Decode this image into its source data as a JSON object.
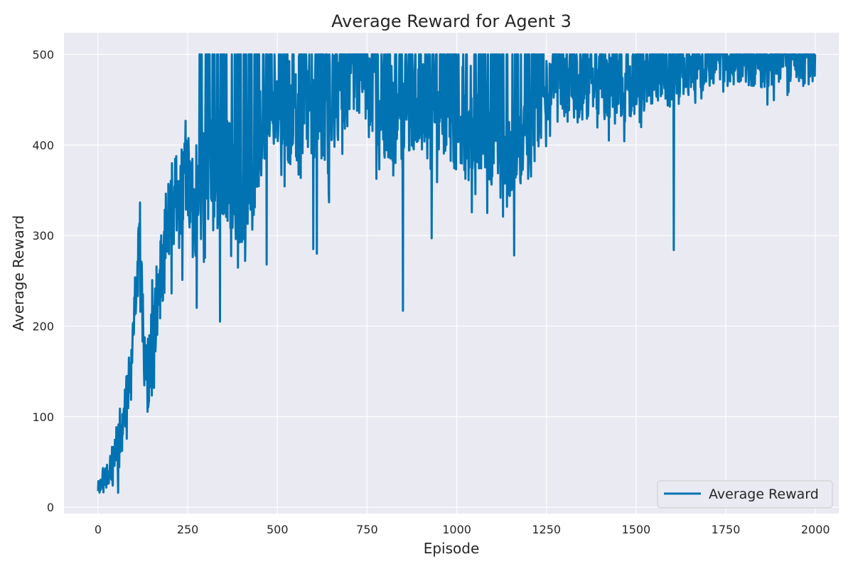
{
  "chart_data": {
    "type": "line",
    "title": "Average Reward for Agent 3",
    "xlabel": "Episode",
    "ylabel": "Average Reward",
    "xlim": [
      -95,
      2065
    ],
    "ylim": [
      -7,
      524
    ],
    "xticks": [
      0,
      250,
      500,
      750,
      1000,
      1250,
      1500,
      1750,
      2000
    ],
    "yticks": [
      0,
      100,
      200,
      300,
      400,
      500
    ],
    "grid": true,
    "legend_position": "lower-right",
    "series": [
      {
        "name": "Average Reward",
        "color": "#0173b2",
        "anchors": [
          [
            0,
            22
          ],
          [
            10,
            28
          ],
          [
            20,
            35
          ],
          [
            30,
            40
          ],
          [
            40,
            45
          ],
          [
            50,
            55
          ],
          [
            60,
            70
          ],
          [
            70,
            80
          ],
          [
            80,
            110
          ],
          [
            90,
            150
          ],
          [
            100,
            200
          ],
          [
            110,
            290
          ],
          [
            120,
            250
          ],
          [
            130,
            160
          ],
          [
            140,
            150
          ],
          [
            150,
            170
          ],
          [
            160,
            210
          ],
          [
            170,
            250
          ],
          [
            180,
            280
          ],
          [
            190,
            300
          ],
          [
            200,
            320
          ],
          [
            225,
            340
          ],
          [
            250,
            370
          ],
          [
            275,
            330
          ],
          [
            300,
            390
          ],
          [
            325,
            360
          ],
          [
            350,
            380
          ],
          [
            375,
            360
          ],
          [
            400,
            340
          ],
          [
            425,
            350
          ],
          [
            450,
            400
          ],
          [
            475,
            460
          ],
          [
            500,
            430
          ],
          [
            525,
            425
          ],
          [
            550,
            430
          ],
          [
            575,
            440
          ],
          [
            600,
            430
          ],
          [
            625,
            410
          ],
          [
            650,
            430
          ],
          [
            675,
            460
          ],
          [
            700,
            470
          ],
          [
            725,
            480
          ],
          [
            750,
            470
          ],
          [
            775,
            450
          ],
          [
            800,
            430
          ],
          [
            825,
            420
          ],
          [
            850,
            420
          ],
          [
            875,
            440
          ],
          [
            900,
            440
          ],
          [
            925,
            450
          ],
          [
            950,
            440
          ],
          [
            975,
            430
          ],
          [
            1000,
            420
          ],
          [
            1025,
            410
          ],
          [
            1050,
            410
          ],
          [
            1075,
            420
          ],
          [
            1100,
            400
          ],
          [
            1125,
            380
          ],
          [
            1150,
            370
          ],
          [
            1175,
            390
          ],
          [
            1200,
            410
          ],
          [
            1225,
            430
          ],
          [
            1250,
            460
          ],
          [
            1275,
            470
          ],
          [
            1300,
            460
          ],
          [
            1325,
            450
          ],
          [
            1350,
            460
          ],
          [
            1375,
            470
          ],
          [
            1400,
            460
          ],
          [
            1425,
            460
          ],
          [
            1450,
            470
          ],
          [
            1475,
            460
          ],
          [
            1500,
            470
          ],
          [
            1525,
            470
          ],
          [
            1550,
            480
          ],
          [
            1575,
            480
          ],
          [
            1600,
            470
          ],
          [
            1625,
            480
          ],
          [
            1650,
            485
          ],
          [
            1675,
            485
          ],
          [
            1700,
            490
          ],
          [
            1725,
            490
          ],
          [
            1750,
            490
          ],
          [
            1775,
            492
          ],
          [
            1800,
            492
          ],
          [
            1825,
            490
          ],
          [
            1850,
            488
          ],
          [
            1875,
            490
          ],
          [
            1900,
            490
          ],
          [
            1925,
            492
          ],
          [
            1950,
            490
          ],
          [
            1975,
            490
          ],
          [
            2000,
            485
          ]
        ],
        "noise": [
          [
            0,
            8
          ],
          [
            100,
            45
          ],
          [
            200,
            55
          ],
          [
            300,
            65
          ],
          [
            500,
            50
          ],
          [
            1000,
            50
          ],
          [
            1250,
            40
          ],
          [
            1500,
            35
          ],
          [
            1750,
            25
          ],
          [
            2000,
            25
          ]
        ],
        "dips": [
          [
            340,
            205
          ],
          [
            600,
            285
          ],
          [
            610,
            280
          ],
          [
            850,
            217
          ],
          [
            1160,
            278
          ],
          [
            1605,
            284
          ],
          [
            470,
            268
          ],
          [
            410,
            272
          ],
          [
            930,
            297
          ],
          [
            1085,
            325
          ],
          [
            1260,
            410
          ]
        ]
      }
    ]
  }
}
